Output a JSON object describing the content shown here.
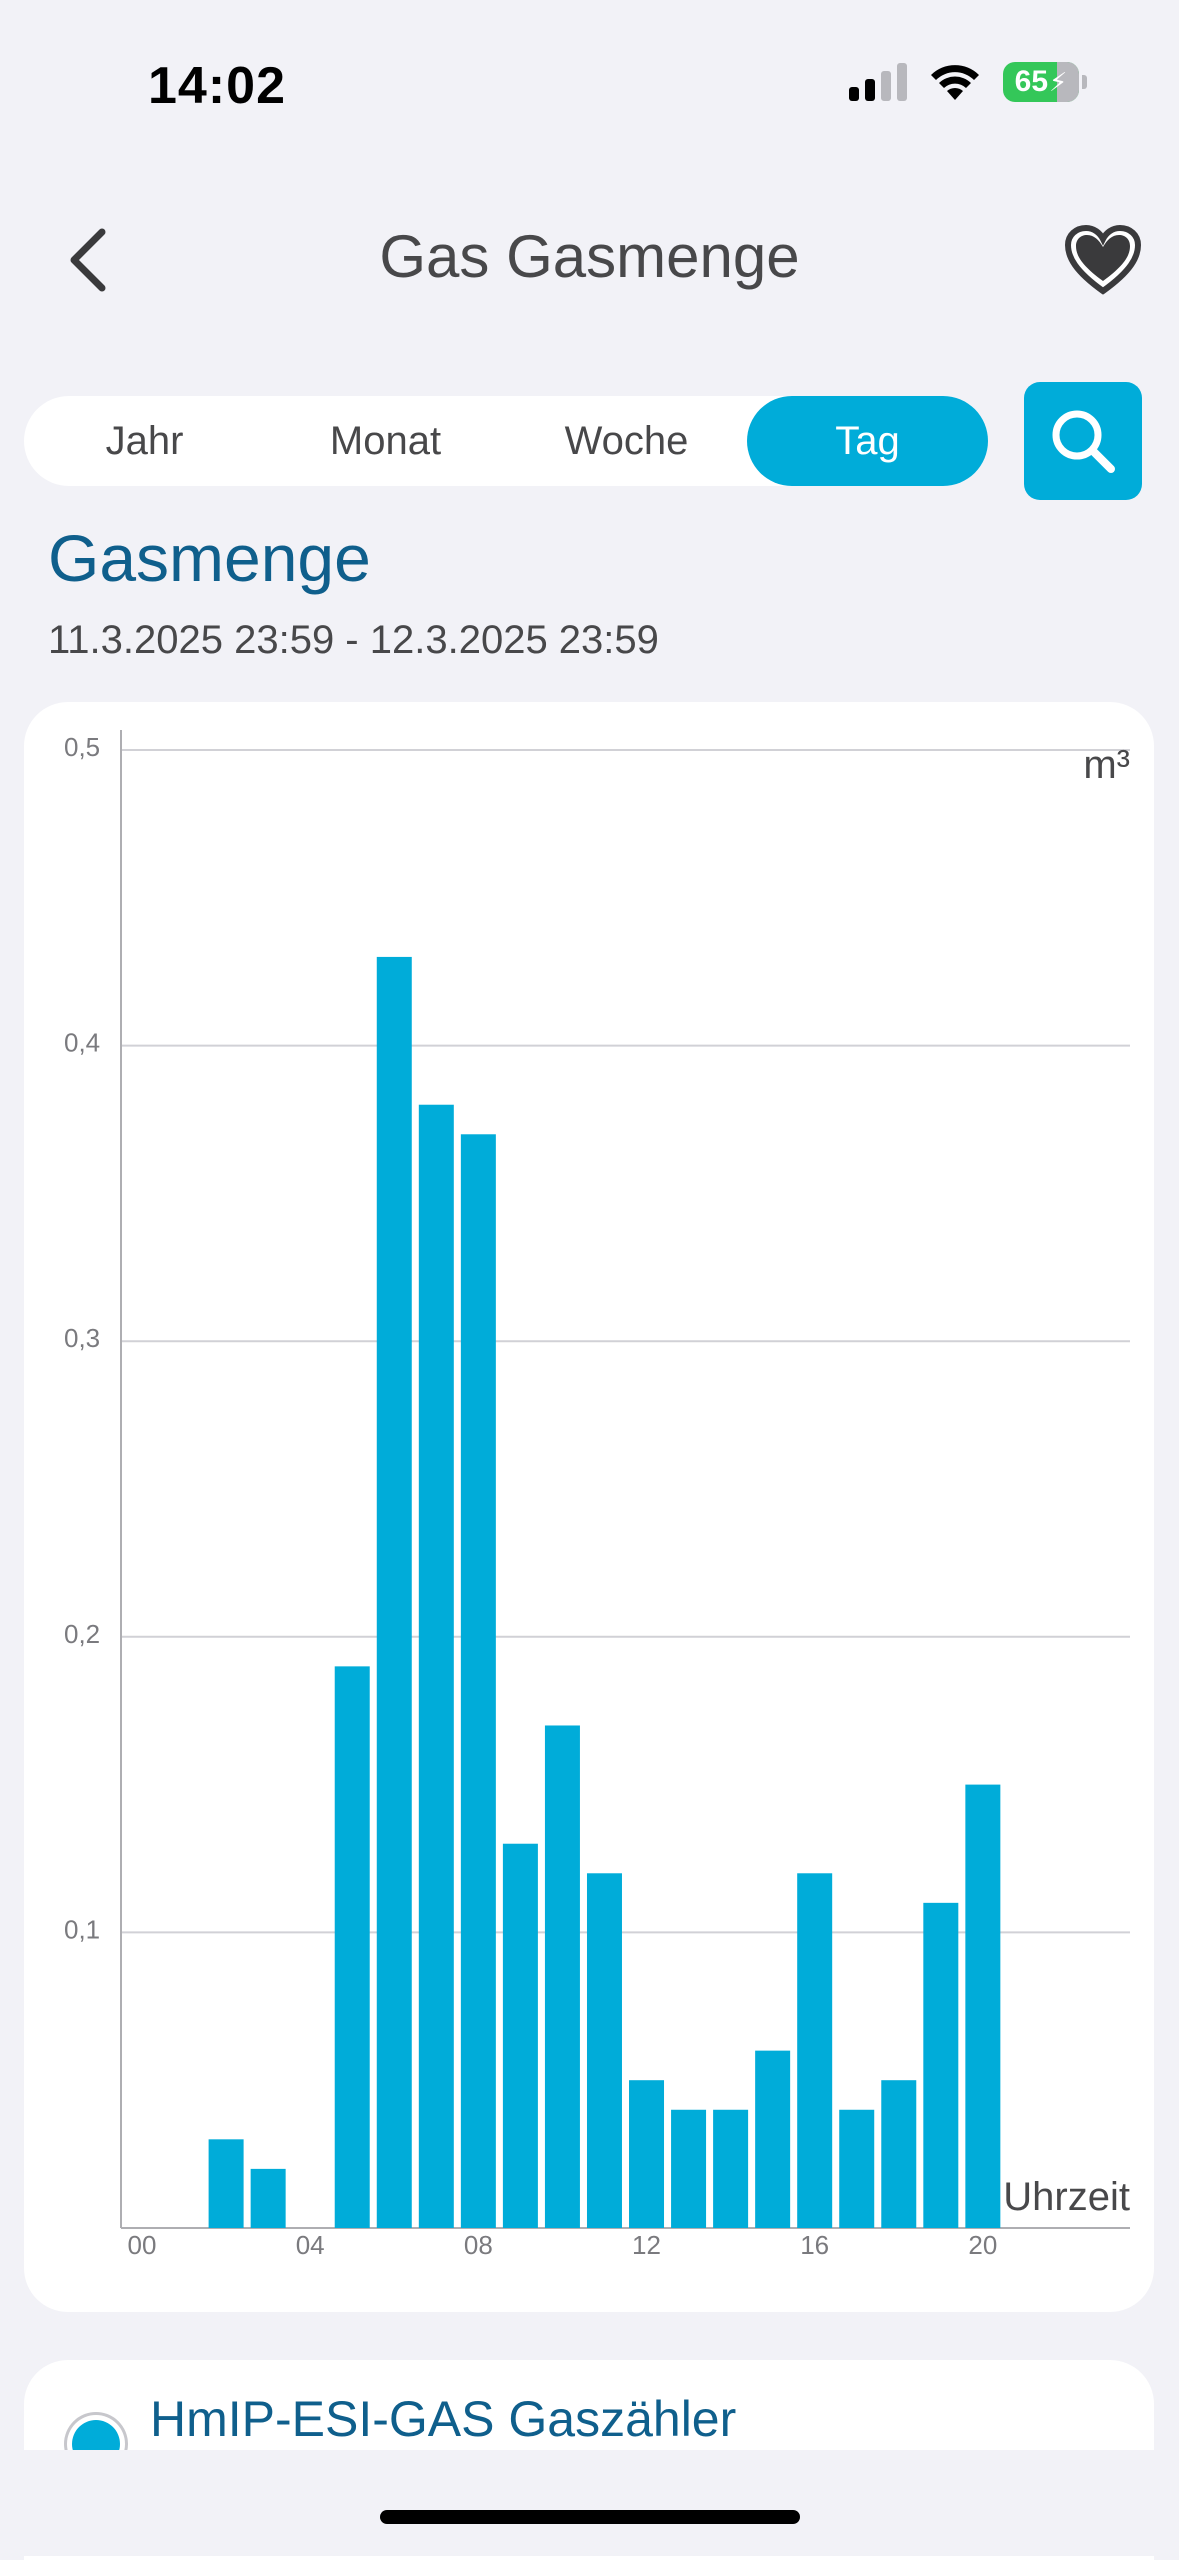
{
  "status_bar": {
    "time": "14:02",
    "battery": "65"
  },
  "header": {
    "title": "Gas Gasmenge"
  },
  "segments": [
    {
      "label": "Jahr",
      "active": false
    },
    {
      "label": "Monat",
      "active": false
    },
    {
      "label": "Woche",
      "active": false
    },
    {
      "label": "Tag",
      "active": true
    }
  ],
  "section": {
    "title": "Gasmenge",
    "date_range": "11.3.2025 23:59 - 12.3.2025 23:59"
  },
  "chart_data": {
    "type": "bar",
    "unit": "m³",
    "xlabel": "Uhrzeit",
    "ylim": [
      0,
      0.5
    ],
    "yticks": [
      "0,1",
      "0,2",
      "0,3",
      "0,4",
      "0,5"
    ],
    "xticks": [
      "00",
      "04",
      "08",
      "12",
      "16",
      "20"
    ],
    "categories": [
      0,
      1,
      2,
      3,
      4,
      5,
      6,
      7,
      8,
      9,
      10,
      11,
      12,
      13,
      14,
      15,
      16,
      17,
      18,
      19,
      20,
      21,
      22,
      23
    ],
    "values": [
      0,
      0,
      0.03,
      0.02,
      0,
      0.19,
      0.43,
      0.38,
      0.37,
      0.13,
      0.17,
      0.12,
      0.05,
      0.04,
      0.04,
      0.06,
      0.12,
      0.04,
      0.05,
      0.11,
      0.15,
      0,
      0,
      0
    ],
    "bar_color": "#00acd9",
    "grid": true
  },
  "device": {
    "name": "HmIP-ESI-GAS Gaszähler"
  }
}
